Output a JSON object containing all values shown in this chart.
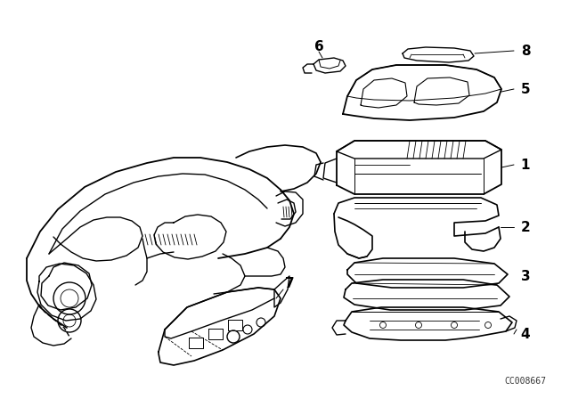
{
  "bg_color": "#ffffff",
  "line_color": "#000000",
  "watermark": "CC008667",
  "lw": 1.0,
  "font_size": 10
}
